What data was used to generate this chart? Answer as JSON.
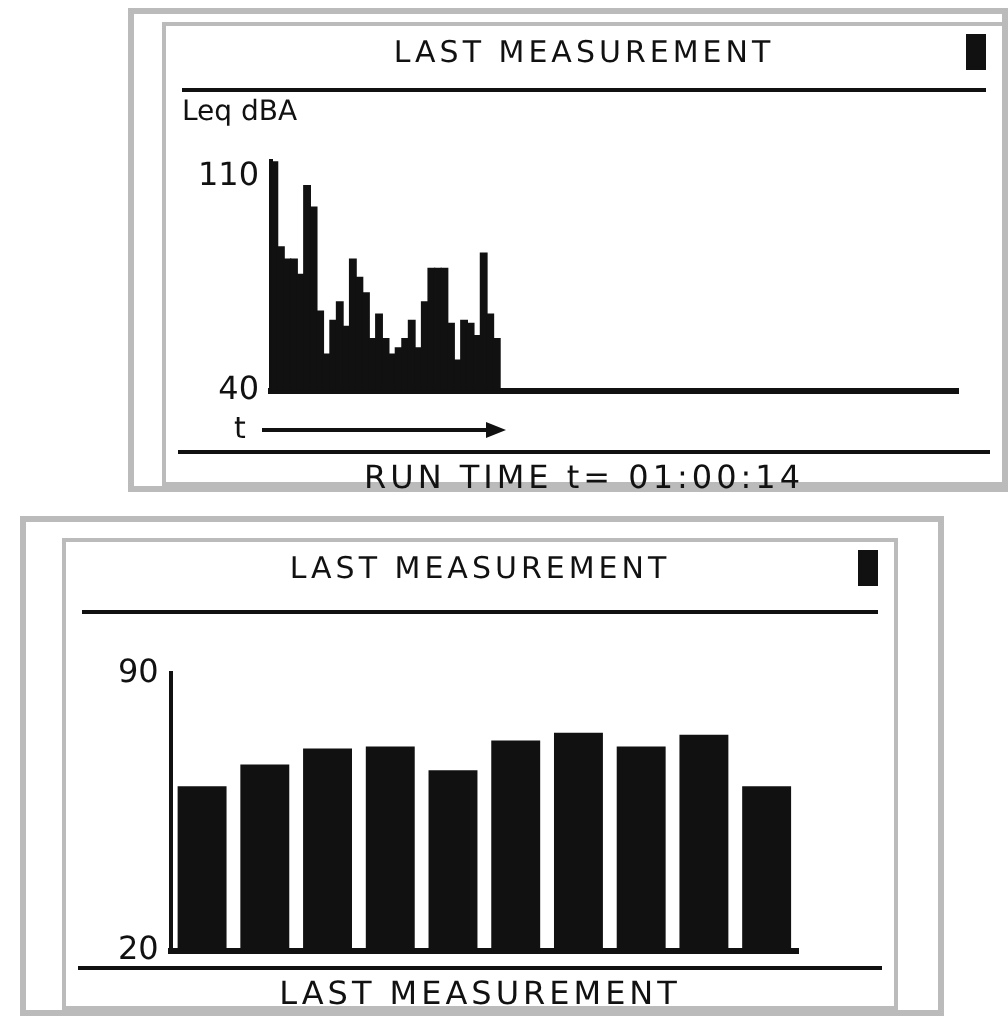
{
  "chart_data": [
    {
      "type": "bar",
      "title": "LAST MEASUREMENT",
      "ylabel": "Leq dBA",
      "xlabel": "t",
      "annotations": [
        "RUN TIME t= 01:00:14"
      ],
      "tick_labels": "y",
      "color": "#111111",
      "categories": [
        null,
        null,
        null,
        null,
        null,
        null,
        null,
        null,
        null,
        null,
        null,
        null,
        null,
        null,
        null,
        null,
        null,
        null,
        null,
        null,
        null,
        null,
        null,
        null,
        null,
        null,
        null,
        null,
        null,
        null,
        null,
        null,
        null,
        null,
        null,
        null,
        null,
        null,
        null,
        null,
        null,
        null,
        null,
        null,
        null,
        null,
        null,
        null,
        null,
        null,
        null,
        null,
        null,
        null,
        null,
        null,
        null,
        null,
        null,
        null,
        null,
        null,
        null,
        null,
        null,
        null,
        null,
        null,
        null,
        null,
        null,
        null,
        null,
        null,
        null,
        null,
        null,
        null,
        null,
        null,
        null,
        null,
        null,
        null,
        null,
        null,
        null,
        null,
        null,
        null,
        null,
        null,
        null,
        null,
        null,
        null,
        null,
        null,
        null,
        null,
        null,
        null,
        null,
        null,
        null
      ],
      "values": [
        115,
        87,
        83,
        83,
        78,
        107,
        100,
        66,
        52,
        63,
        69,
        61,
        83,
        77,
        72,
        57,
        65,
        57,
        52,
        54,
        57,
        63,
        54,
        69,
        80,
        80,
        80,
        62,
        50,
        63,
        62,
        58,
        85,
        65,
        57,
        null,
        null,
        null,
        null,
        null,
        null,
        null,
        null,
        null,
        null,
        null,
        null,
        null,
        null,
        null,
        null,
        null,
        null,
        null,
        null,
        null,
        null,
        null,
        null,
        null,
        null,
        null,
        null,
        null,
        null,
        null,
        null,
        null,
        null,
        null,
        null,
        null,
        null,
        null,
        null,
        null,
        null,
        null,
        null,
        null,
        null,
        null,
        null,
        null,
        null,
        null,
        null,
        null,
        null,
        null,
        null,
        null,
        null,
        null,
        null,
        null,
        null,
        null,
        null,
        null,
        null,
        null,
        null,
        null,
        null
      ],
      "ylim": [
        40,
        115
      ],
      "yticks": [
        40,
        110
      ]
    },
    {
      "type": "bar",
      "title": "LAST MEASUREMENT",
      "annotations": [
        "LAST MEASUREMENT"
      ],
      "tick_labels": "y",
      "color": "#111111",
      "categories": [
        null,
        null,
        null,
        null,
        null,
        null,
        null,
        null,
        null,
        null
      ],
      "values": [
        61.5,
        67,
        71,
        71.5,
        65.5,
        73,
        75,
        71.5,
        74.5,
        61.5
      ],
      "ylim": [
        20,
        90
      ],
      "yticks": [
        20,
        90
      ]
    }
  ]
}
